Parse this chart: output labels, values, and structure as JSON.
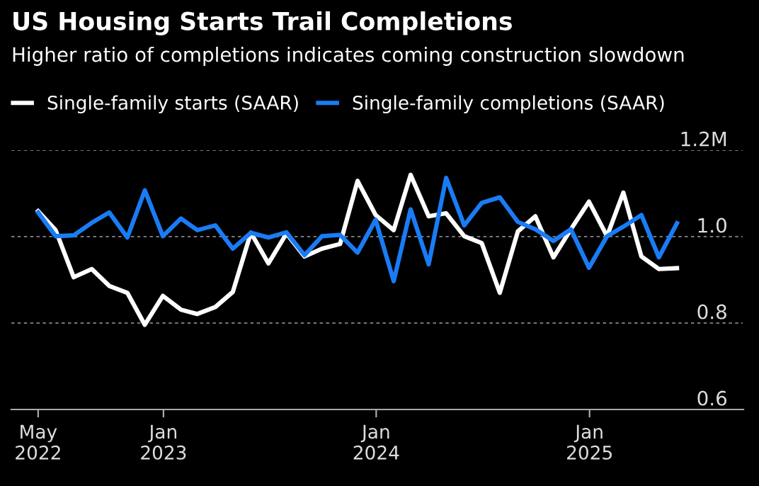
{
  "chart_data": {
    "type": "line",
    "title": "US Housing Starts Trail Completions",
    "subtitle": "Higher ratio of completions indicates coming construction slowdown",
    "x": [
      "2022-05-31",
      "2022-06-30",
      "2022-07-31",
      "2022-08-31",
      "2022-09-30",
      "2022-10-31",
      "2022-11-30",
      "2022-12-31",
      "2023-01-31",
      "2023-02-28",
      "2023-03-31",
      "2023-04-30",
      "2023-05-31",
      "2023-06-30",
      "2023-07-31",
      "2023-08-31",
      "2023-09-30",
      "2023-10-31",
      "2023-11-30",
      "2023-12-31",
      "2024-01-31",
      "2024-02-29",
      "2024-03-31",
      "2024-04-30",
      "2024-05-31",
      "2024-06-30",
      "2024-07-31",
      "2024-08-31",
      "2024-09-30",
      "2024-10-31",
      "2024-11-30",
      "2024-12-31",
      "2025-01-31",
      "2025-02-28",
      "2025-03-31",
      "2025-04-30",
      "2025-05-31"
    ],
    "series": [
      {
        "name": "Single-family starts (SAAR)",
        "color": "#ffffff",
        "values": [
          1.059,
          1.015,
          0.906,
          0.925,
          0.886,
          0.87,
          0.796,
          0.863,
          0.831,
          0.821,
          0.837,
          0.872,
          1.009,
          0.938,
          1.007,
          0.954,
          0.972,
          0.983,
          1.129,
          1.05,
          1.015,
          1.143,
          1.047,
          1.054,
          1.001,
          0.985,
          0.87,
          1.012,
          1.047,
          0.952,
          1.017,
          1.081,
          1.001,
          1.102,
          0.954,
          0.925,
          0.927
        ]
      },
      {
        "name": "Single-family completions (SAAR)",
        "color": "#1a7cf5",
        "values": [
          1.056,
          1.001,
          1.003,
          1.032,
          1.056,
          0.998,
          1.107,
          1.001,
          1.042,
          1.015,
          1.026,
          0.972,
          1.009,
          0.998,
          1.01,
          0.957,
          1.001,
          1.004,
          0.963,
          1.039,
          0.897,
          1.063,
          0.936,
          1.136,
          1.026,
          1.078,
          1.091,
          1.034,
          1.017,
          0.99,
          1.017,
          0.928,
          1.001,
          1.023,
          1.05,
          0.952,
          1.031
        ]
      }
    ],
    "xlim": [
      "2022-04-15",
      "2025-09-22"
    ],
    "xticks": [
      {
        "value": "2022-05-31",
        "label": "May\n2022"
      },
      {
        "value": "2023-01-01",
        "label": "Jan\n2023"
      },
      {
        "value": "2024-01-01",
        "label": "Jan\n2024"
      },
      {
        "value": "2025-01-01",
        "label": "Jan\n2025"
      }
    ],
    "ylim": [
      0.6,
      1.2
    ],
    "yticks": [
      0.6,
      0.8,
      {
        "value": 1.0,
        "label": "1.0"
      },
      {
        "value": 1.2,
        "label": "1.2M"
      }
    ],
    "grid": "y",
    "legend": "top",
    "marker": "none",
    "line_style": "solid"
  }
}
